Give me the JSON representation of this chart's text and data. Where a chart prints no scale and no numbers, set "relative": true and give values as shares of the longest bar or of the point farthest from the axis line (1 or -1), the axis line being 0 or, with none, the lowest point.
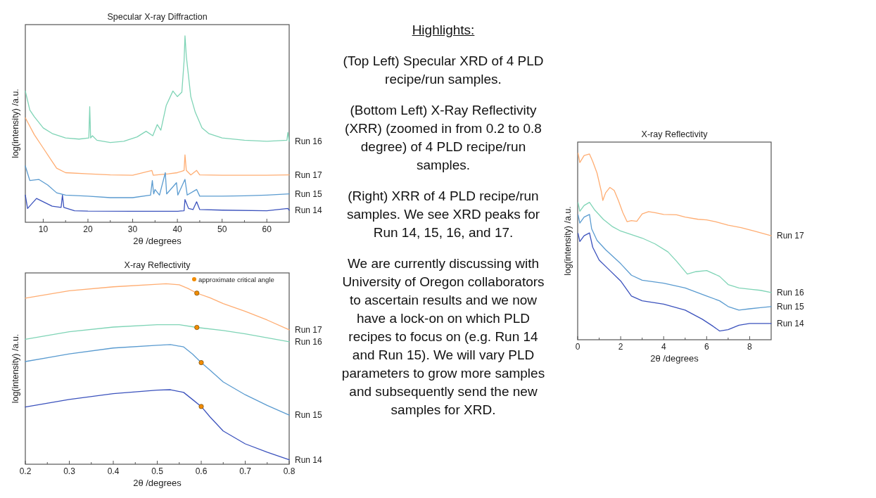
{
  "chart_data": [
    {
      "type": "line",
      "title": "Specular X-ray Diffraction",
      "xlabel": "2θ /degrees",
      "ylabel": "log(intensity) /a.u.",
      "relative": true,
      "tick_labels": "x",
      "grid": false,
      "legend": false,
      "xlim": [
        6,
        65
      ],
      "xticks": [
        10,
        {
          "value": 15,
          "label": null
        },
        20,
        {
          "value": 25,
          "label": null
        },
        30,
        {
          "value": 35,
          "label": null
        },
        40,
        {
          "value": 45,
          "label": null
        },
        50,
        {
          "value": 55,
          "label": null
        },
        60
      ],
      "series": [
        {
          "name": "Run 16",
          "color": "#7fd4b6",
          "x": [
            6,
            7,
            8,
            10,
            12,
            15,
            18,
            20.2,
            20.4,
            20.6,
            21,
            22,
            25,
            28,
            31,
            33,
            34.5,
            35.5,
            36.3,
            37.5,
            39,
            40,
            41,
            41.5,
            41.7,
            42,
            43,
            44,
            45.5,
            47,
            50,
            55,
            60,
            64.5,
            64.7,
            65
          ],
          "values": [
            0.704,
            0.602,
            0.566,
            0.506,
            0.476,
            0.452,
            0.446,
            0.452,
            0.62,
            0.452,
            0.464,
            0.44,
            0.428,
            0.434,
            0.458,
            0.488,
            0.464,
            0.524,
            0.494,
            0.626,
            0.704,
            0.674,
            0.698,
            0.866,
            1,
            0.89,
            0.674,
            0.59,
            0.506,
            0.476,
            0.452,
            0.44,
            0.434,
            0.44,
            0.482,
            0.434
          ]
        },
        {
          "name": "Run 17",
          "color": "#ffad72",
          "x": [
            6,
            8,
            10,
            12,
            13,
            15,
            20,
            25,
            30,
            34.3,
            34.6,
            38,
            40,
            41.5,
            41.7,
            42,
            43,
            44.3,
            45,
            50,
            55,
            60,
            65
          ],
          "values": [
            0.56,
            0.47,
            0.398,
            0.326,
            0.29,
            0.266,
            0.26,
            0.254,
            0.252,
            0.278,
            0.252,
            0.26,
            0.266,
            0.278,
            0.362,
            0.278,
            0.254,
            0.278,
            0.254,
            0.252,
            0.252,
            0.252,
            0.254
          ]
        },
        {
          "name": "Run 15",
          "color": "#5a9bd0",
          "x": [
            6,
            7,
            9,
            11,
            13,
            15,
            20,
            25,
            30,
            34,
            34.4,
            34.7,
            35,
            36,
            37.3,
            37.6,
            39.8,
            40.1,
            41.7,
            42.2,
            44.3,
            45,
            50,
            55,
            60,
            65
          ],
          "values": [
            0.302,
            0.224,
            0.23,
            0.2,
            0.158,
            0.146,
            0.14,
            0.132,
            0.132,
            0.146,
            0.224,
            0.152,
            0.176,
            0.146,
            0.266,
            0.152,
            0.212,
            0.146,
            0.23,
            0.146,
            0.176,
            0.14,
            0.14,
            0.142,
            0.146,
            0.152
          ]
        },
        {
          "name": "Run 14",
          "color": "#3b52bd",
          "x": [
            6,
            6.5,
            8.5,
            10,
            12,
            14,
            14.3,
            14.6,
            17,
            20,
            30,
            40,
            41.5,
            41.7,
            42.5,
            43.5,
            44.3,
            45,
            50,
            60,
            64.7,
            65
          ],
          "values": [
            0.146,
            0.074,
            0.128,
            0.11,
            0.086,
            0.08,
            0.146,
            0.08,
            0.062,
            0.06,
            0.059,
            0.059,
            0.062,
            0.122,
            0.074,
            0.068,
            0.11,
            0.068,
            0.065,
            0.062,
            0.074,
            0.065
          ]
        }
      ]
    },
    {
      "type": "line",
      "title": "X-ray Reflectivity",
      "xlabel": "2θ /degrees",
      "ylabel": "log(intensity) /a.u.",
      "relative": true,
      "tick_labels": "x",
      "grid": false,
      "legend": "top right",
      "xlim": [
        0.2,
        0.8
      ],
      "xticks": [
        0.2,
        {
          "value": 0.25,
          "label": null
        },
        0.3,
        {
          "value": 0.35,
          "label": null
        },
        0.4,
        {
          "value": 0.45,
          "label": null
        },
        0.5,
        {
          "value": 0.55,
          "label": null
        },
        0.6,
        {
          "value": 0.65,
          "label": null
        },
        0.7,
        {
          "value": 0.75,
          "label": null
        },
        0.8
      ],
      "series": [
        {
          "name": "Run 17",
          "color": "#ffad72",
          "x": [
            0.2,
            0.3,
            0.4,
            0.5,
            0.52,
            0.55,
            0.57,
            0.59,
            0.62,
            0.65,
            0.7,
            0.75,
            0.8
          ],
          "values": [
            0.92,
            0.961,
            0.983,
            0.997,
            1,
            0.994,
            0.974,
            0.948,
            0.922,
            0.89,
            0.847,
            0.799,
            0.745
          ]
        },
        {
          "name": "Run 16",
          "color": "#7fd4b6",
          "x": [
            0.2,
            0.3,
            0.4,
            0.5,
            0.55,
            0.59,
            0.65,
            0.7,
            0.8
          ],
          "values": [
            0.692,
            0.734,
            0.76,
            0.773,
            0.773,
            0.758,
            0.741,
            0.722,
            0.679
          ]
        },
        {
          "name": "Run 15",
          "color": "#5a9bd0",
          "x": [
            0.2,
            0.3,
            0.4,
            0.5,
            0.53,
            0.56,
            0.58,
            0.6,
            0.62,
            0.65,
            0.7,
            0.75,
            0.8
          ],
          "values": [
            0.569,
            0.611,
            0.644,
            0.659,
            0.663,
            0.65,
            0.611,
            0.563,
            0.521,
            0.456,
            0.385,
            0.326,
            0.272
          ]
        },
        {
          "name": "Run 14",
          "color": "#3b52bd",
          "x": [
            0.2,
            0.3,
            0.4,
            0.5,
            0.53,
            0.56,
            0.58,
            0.6,
            0.62,
            0.65,
            0.7,
            0.75,
            0.8
          ],
          "values": [
            0.317,
            0.359,
            0.391,
            0.411,
            0.413,
            0.398,
            0.359,
            0.32,
            0.262,
            0.184,
            0.113,
            0.067,
            0.025
          ]
        },
        {
          "name": "approximate critical angle",
          "type": "scatter",
          "marker": "circle",
          "color": "#f28c00",
          "x": [
            0.59,
            0.59,
            0.6,
            0.6
          ],
          "values": [
            0.948,
            0.758,
            0.563,
            0.32
          ]
        }
      ]
    },
    {
      "type": "other",
      "title": "Highlights:",
      "annotations": [
        "(Top Left) Specular XRD of 4 PLD recipe/run samples.",
        "(Bottom Left) X-Ray Reflectivity (XRR) (zoomed in from 0.2 to 0.8 degree) of 4 PLD recipe/run samples.",
        "(Right) XRR of 4 PLD recipe/run samples.  We see XRD peaks for Run 14, 15, 16, and 17.",
        "We are currently discussing with University of Oregon collaborators to ascertain results and we now have a lock-on on which PLD recipes to focus on (e.g. Run 14 and Run 15).  We will vary PLD parameters to grow more samples and subsequently send the new samples for XRD."
      ]
    },
    {
      "type": "line",
      "title": "X-ray Reflectivity",
      "xlabel": "2θ /degrees",
      "ylabel": "log(intensity) /a.u.",
      "relative": true,
      "tick_labels": "x",
      "grid": false,
      "legend": false,
      "xlim": [
        0,
        9
      ],
      "xticks": [
        0,
        {
          "value": 1,
          "label": null
        },
        2,
        {
          "value": 3,
          "label": null
        },
        4,
        {
          "value": 5,
          "label": null
        },
        6,
        {
          "value": 7,
          "label": null
        },
        8
      ],
      "series": [
        {
          "name": "Run 17",
          "color": "#ffad72",
          "x": [
            0.02,
            0.1,
            0.3,
            0.55,
            0.7,
            0.9,
            1.1,
            1.17,
            1.3,
            1.5,
            1.7,
            1.9,
            2.1,
            2.3,
            2.5,
            2.75,
            3,
            3.3,
            3.6,
            4,
            4.6,
            5,
            5.6,
            6,
            6.4,
            7,
            7.6,
            8.2,
            9
          ],
          "values": [
            1,
            0.95,
            0.988,
            0.996,
            0.956,
            0.894,
            0.795,
            0.747,
            0.788,
            0.817,
            0.801,
            0.745,
            0.682,
            0.633,
            0.639,
            0.635,
            0.675,
            0.687,
            0.681,
            0.672,
            0.67,
            0.658,
            0.646,
            0.643,
            0.633,
            0.614,
            0.601,
            0.583,
            0.558
          ]
        },
        {
          "name": "Run 16",
          "color": "#7fd4b6",
          "x": [
            0.02,
            0.1,
            0.3,
            0.55,
            0.8,
            1.2,
            1.6,
            2,
            3,
            3.6,
            4.2,
            4.6,
            5.1,
            5.5,
            6,
            6.6,
            7,
            7.5,
            8,
            8.5,
            9
          ],
          "values": [
            0.735,
            0.689,
            0.72,
            0.737,
            0.695,
            0.645,
            0.608,
            0.583,
            0.545,
            0.514,
            0.471,
            0.421,
            0.352,
            0.365,
            0.371,
            0.34,
            0.296,
            0.278,
            0.271,
            0.265,
            0.253
          ]
        },
        {
          "name": "Run 15",
          "color": "#5a9bd0",
          "x": [
            0.02,
            0.1,
            0.3,
            0.55,
            0.65,
            0.9,
            1.3,
            2,
            2.5,
            3,
            4,
            5,
            6,
            6.6,
            7,
            7.5,
            8,
            8.5,
            9
          ],
          "values": [
            0.67,
            0.626,
            0.658,
            0.672,
            0.595,
            0.533,
            0.483,
            0.408,
            0.346,
            0.319,
            0.303,
            0.278,
            0.234,
            0.209,
            0.178,
            0.159,
            0.166,
            0.172,
            0.178
          ]
        },
        {
          "name": "Run 14",
          "color": "#3b52bd",
          "x": [
            0.02,
            0.1,
            0.3,
            0.55,
            0.7,
            1,
            1.5,
            2,
            2.5,
            3,
            4,
            5,
            5.8,
            6.3,
            6.6,
            7,
            7.5,
            8,
            9
          ],
          "values": [
            0.57,
            0.527,
            0.558,
            0.573,
            0.496,
            0.427,
            0.371,
            0.315,
            0.234,
            0.209,
            0.191,
            0.159,
            0.11,
            0.072,
            0.047,
            0.054,
            0.078,
            0.087,
            0.087
          ]
        }
      ]
    }
  ]
}
